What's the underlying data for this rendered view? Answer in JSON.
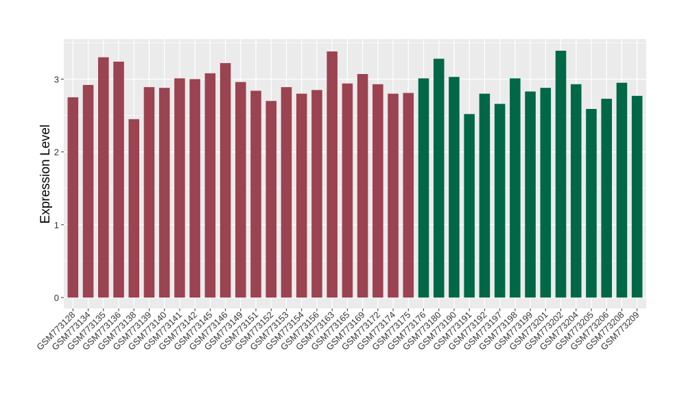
{
  "chart_data": {
    "type": "bar",
    "title": "",
    "xlabel": "",
    "ylabel": "Expression Level",
    "ylim": [
      -0.15,
      3.55
    ],
    "yticks": [
      0,
      1,
      2,
      3
    ],
    "grid": true,
    "legend": "none",
    "panel_background": "#ebebeb",
    "grid_color": "#ffffff",
    "categories": [
      "GSM773128",
      "GSM773134",
      "GSM773135",
      "GSM773136",
      "GSM773138",
      "GSM773139",
      "GSM773140",
      "GSM773141",
      "GSM773142",
      "GSM773145",
      "GSM773146",
      "GSM773149",
      "GSM773151",
      "GSM773152",
      "GSM773153",
      "GSM773154",
      "GSM773156",
      "GSM773163",
      "GSM773165",
      "GSM773169",
      "GSM773172",
      "GSM773174",
      "GSM773175",
      "GSM773176",
      "GSM773180",
      "GSM773190",
      "GSM773191",
      "GSM773192",
      "GSM773197",
      "GSM773198",
      "GSM773199",
      "GSM773201",
      "GSM773202",
      "GSM773204",
      "GSM773205",
      "GSM773206",
      "GSM773208",
      "GSM773209"
    ],
    "values": [
      2.75,
      2.92,
      3.3,
      3.24,
      2.45,
      2.89,
      2.88,
      3.01,
      3.0,
      3.08,
      3.22,
      2.96,
      2.84,
      2.7,
      2.89,
      2.8,
      2.85,
      3.38,
      2.94,
      3.07,
      2.93,
      2.8,
      2.81,
      3.01,
      3.28,
      3.03,
      2.52,
      2.8,
      2.66,
      3.01,
      2.83,
      2.88,
      3.39,
      2.93,
      2.59,
      2.73,
      2.95,
      2.77
    ],
    "colors": [
      "#9b4350",
      "#9b4350",
      "#9b4350",
      "#9b4350",
      "#9b4350",
      "#9b4350",
      "#9b4350",
      "#9b4350",
      "#9b4350",
      "#9b4350",
      "#9b4350",
      "#9b4350",
      "#9b4350",
      "#9b4350",
      "#9b4350",
      "#9b4350",
      "#9b4350",
      "#9b4350",
      "#9b4350",
      "#9b4350",
      "#9b4350",
      "#9b4350",
      "#9b4350",
      "#006747",
      "#006747",
      "#006747",
      "#006747",
      "#006747",
      "#006747",
      "#006747",
      "#006747",
      "#006747",
      "#006747",
      "#006747",
      "#006747",
      "#006747",
      "#006747",
      "#006747"
    ]
  }
}
